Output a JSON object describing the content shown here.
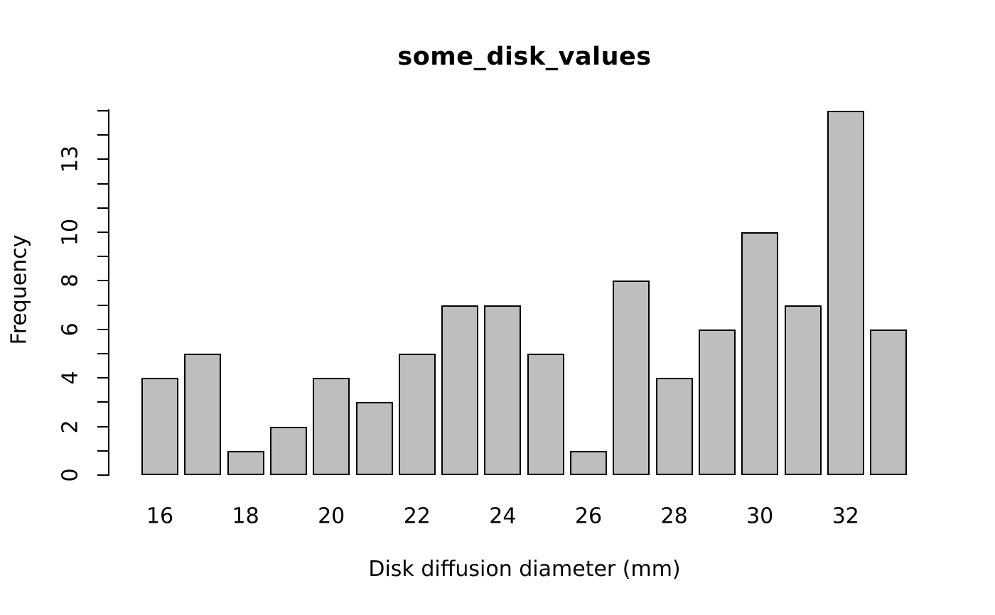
{
  "figure": {
    "title": "some_disk_values",
    "xlabel": "Disk diffusion diameter (mm)",
    "ylabel": "Frequency"
  },
  "chart_data": {
    "type": "bar",
    "title": "some_disk_values",
    "xlabel": "Disk diffusion diameter (mm)",
    "ylabel": "Frequency",
    "categories": [
      16,
      17,
      18,
      19,
      20,
      21,
      22,
      23,
      24,
      25,
      26,
      27,
      28,
      29,
      30,
      31,
      32,
      33
    ],
    "values": [
      4,
      5,
      1,
      2,
      4,
      3,
      5,
      7,
      7,
      5,
      1,
      8,
      4,
      6,
      10,
      7,
      15,
      6
    ],
    "ylim": [
      0,
      15
    ],
    "y_minor_tick_step": 1,
    "y_labeled_ticks": [
      0,
      2,
      4,
      6,
      8,
      10,
      13
    ],
    "x_labeled_categories": [
      16,
      18,
      20,
      22,
      24,
      26,
      28,
      30,
      32
    ],
    "grid": false,
    "legend": false,
    "bar_fill": "#bebebe",
    "bar_stroke": "#000000",
    "background": "#ffffff"
  }
}
